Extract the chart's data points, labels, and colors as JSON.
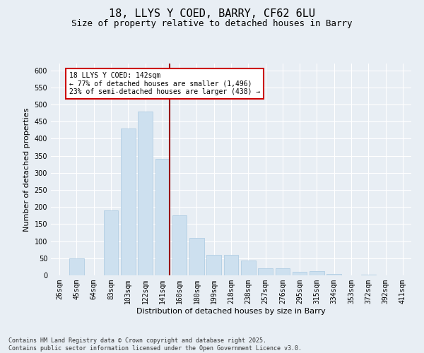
{
  "title_line1": "18, LLYS Y COED, BARRY, CF62 6LU",
  "title_line2": "Size of property relative to detached houses in Barry",
  "xlabel": "Distribution of detached houses by size in Barry",
  "ylabel": "Number of detached properties",
  "bar_labels": [
    "26sqm",
    "45sqm",
    "64sqm",
    "83sqm",
    "103sqm",
    "122sqm",
    "141sqm",
    "160sqm",
    "180sqm",
    "199sqm",
    "218sqm",
    "238sqm",
    "257sqm",
    "276sqm",
    "295sqm",
    "315sqm",
    "334sqm",
    "353sqm",
    "372sqm",
    "392sqm",
    "411sqm"
  ],
  "bar_values": [
    0,
    50,
    0,
    190,
    430,
    480,
    340,
    175,
    110,
    60,
    60,
    43,
    20,
    20,
    10,
    12,
    5,
    0,
    3,
    0,
    0
  ],
  "bar_color": "#cde0ef",
  "bar_edge_color": "#a8c8e0",
  "vline_index": 6,
  "vline_color": "#990000",
  "ylim": [
    0,
    620
  ],
  "yticks": [
    0,
    50,
    100,
    150,
    200,
    250,
    300,
    350,
    400,
    450,
    500,
    550,
    600
  ],
  "annotation_text": "18 LLYS Y COED: 142sqm\n← 77% of detached houses are smaller (1,496)\n23% of semi-detached houses are larger (438) →",
  "annotation_box_color": "#ffffff",
  "annotation_box_edge_color": "#cc0000",
  "footer_text": "Contains HM Land Registry data © Crown copyright and database right 2025.\nContains public sector information licensed under the Open Government Licence v3.0.",
  "bg_color": "#e8eef4",
  "plot_bg_color": "#e8eef4",
  "grid_color": "#ffffff",
  "title1_fontsize": 11,
  "title2_fontsize": 9,
  "xlabel_fontsize": 8,
  "ylabel_fontsize": 8,
  "tick_fontsize": 7,
  "footer_fontsize": 6
}
